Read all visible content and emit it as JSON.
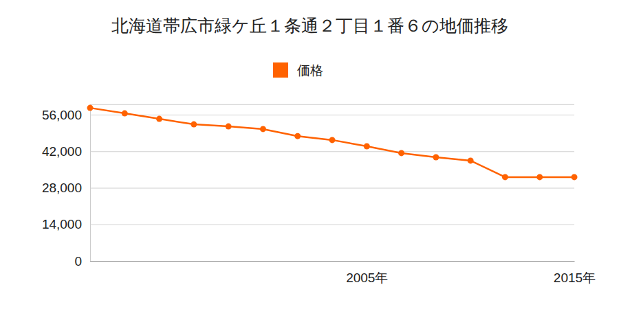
{
  "chart_data": {
    "type": "line",
    "title": "北海道帯広市緑ケ丘１条通２丁目１番６の地価推移",
    "categories": [
      null,
      null,
      null,
      null,
      null,
      null,
      null,
      null,
      "2005年",
      null,
      null,
      null,
      null,
      null,
      "2015年"
    ],
    "series": [
      {
        "name": "価格",
        "color": "#ff6200",
        "marker": "circle",
        "values": [
          58600,
          56500,
          54400,
          52300,
          51500,
          50500,
          47800,
          46300,
          43900,
          41300,
          39700,
          38400,
          32100,
          32100,
          32100
        ]
      }
    ],
    "ylim": [
      0,
      60000
    ],
    "yticks": [
      0,
      {
        "value": 14000,
        "label": "14,000"
      },
      {
        "value": 28000,
        "label": "28,000"
      },
      {
        "value": 42000,
        "label": "42,000"
      },
      {
        "value": 56000,
        "label": "56,000"
      }
    ],
    "grid": true,
    "legend": "top"
  }
}
